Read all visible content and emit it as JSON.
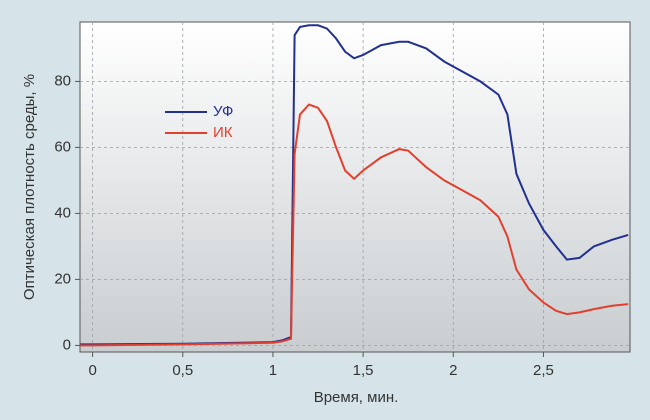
{
  "chart_data": {
    "type": "line",
    "x_label": "Время, мин.",
    "y_label": "Оптическая плотность среды, %",
    "x": [
      -0.07,
      0,
      0.5,
      1,
      1.05,
      1.1,
      1.12,
      1.15,
      1.2,
      1.25,
      1.3,
      1.35,
      1.4,
      1.45,
      1.5,
      1.6,
      1.7,
      1.75,
      1.85,
      1.95,
      2.05,
      2.15,
      2.25,
      2.3,
      2.35,
      2.42,
      2.5,
      2.57,
      2.63,
      2.7,
      2.78,
      2.88,
      2.97
    ],
    "series": [
      {
        "name": "УФ",
        "color": "#22308f",
        "values": [
          0.3,
          0.3,
          0.5,
          1,
          1.5,
          2.5,
          94,
          96.5,
          97,
          97,
          96,
          93,
          89,
          87,
          88,
          91,
          92,
          92,
          90,
          86,
          83,
          80,
          76,
          70,
          52,
          43,
          35,
          30,
          26,
          26.5,
          30,
          32,
          33.5
        ]
      },
      {
        "name": "ИК",
        "color": "#e2402e",
        "values": [
          0,
          0,
          0.3,
          0.8,
          1.2,
          2,
          58,
          70,
          73,
          72,
          68,
          60,
          53,
          50.5,
          53,
          57,
          59.5,
          59,
          54,
          50,
          47,
          44,
          39,
          33,
          23,
          17,
          13,
          10.5,
          9.5,
          10,
          11,
          12,
          12.5
        ]
      }
    ],
    "xlim": [
      -0.07,
      2.98
    ],
    "xticks": [
      0,
      {
        "value": 0.5,
        "label": "0,5"
      },
      1,
      {
        "value": 1.5,
        "label": "1,5"
      },
      2,
      {
        "value": 2.5,
        "label": "2,5"
      }
    ],
    "ylim": [
      -2,
      98
    ],
    "yticks": [
      0,
      20,
      40,
      60,
      80
    ],
    "grid": true,
    "legend": "left"
  }
}
